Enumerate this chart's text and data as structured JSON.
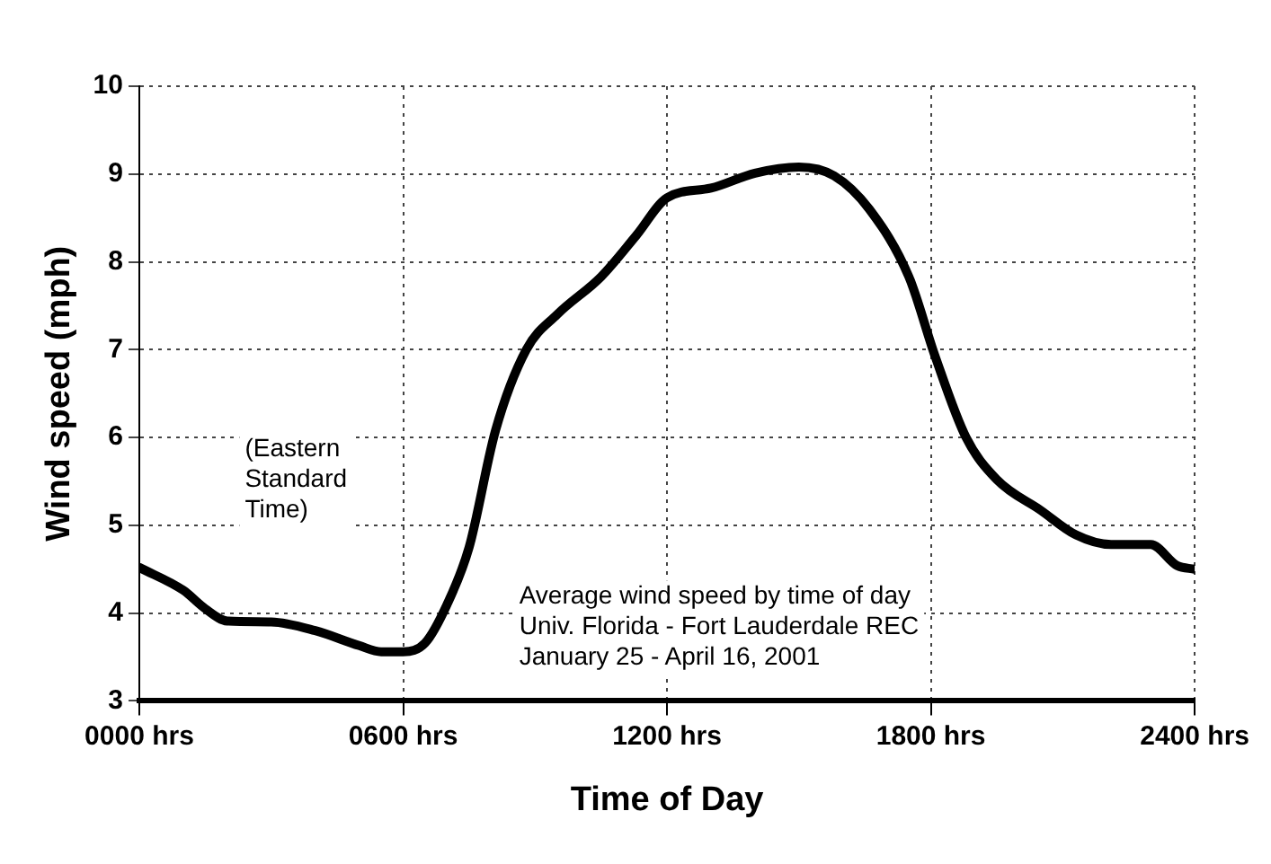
{
  "chart_data": {
    "type": "line",
    "xlabel": "Time of Day",
    "ylabel": "Wind speed (mph)",
    "x": [
      0,
      100,
      150,
      200,
      300,
      400,
      500,
      550,
      600,
      650,
      700,
      750,
      810,
      880,
      950,
      1050,
      1130,
      1200,
      1300,
      1400,
      1500,
      1580,
      1660,
      1750,
      1810,
      1880,
      1950,
      2050,
      2130,
      2210,
      2300,
      2360,
      2400
    ],
    "series": [
      {
        "color": "#000000",
        "values": [
          4.52,
          4.26,
          4.05,
          3.91,
          3.9,
          3.8,
          3.63,
          3.56,
          3.56,
          3.66,
          4.1,
          4.75,
          6.08,
          7.0,
          7.4,
          7.83,
          8.3,
          8.73,
          8.84,
          9.01,
          9.08,
          8.98,
          8.6,
          7.83,
          6.92,
          6.0,
          5.52,
          5.17,
          4.89,
          4.78,
          4.78,
          4.54,
          4.5
        ]
      }
    ],
    "xlim": [
      0,
      2400
    ],
    "xticks": [
      {
        "value": 0,
        "label": "0000 hrs"
      },
      {
        "value": 600,
        "label": "0600 hrs"
      },
      {
        "value": 1200,
        "label": "1200 hrs"
      },
      {
        "value": 1800,
        "label": "1800 hrs"
      },
      {
        "value": 2400,
        "label": "2400 hrs"
      }
    ],
    "ylim": [
      3,
      10
    ],
    "yticks": [
      3,
      4,
      5,
      6,
      7,
      8,
      9,
      10
    ],
    "grid": true,
    "legend": false,
    "marker": "none",
    "line_style": "solid",
    "annotations": [
      "(Eastern\nStandard\nTime)",
      "Average wind speed by time of day\nUniv. Florida - Fort Lauderdale REC\nJanuary 25 - April 16, 2001"
    ]
  }
}
